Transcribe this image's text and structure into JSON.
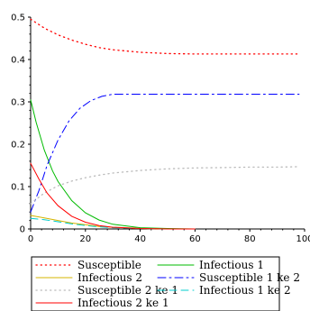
{
  "chart_data": {
    "type": "line",
    "title": "",
    "xlabel": "",
    "ylabel": "",
    "xlim": [
      0,
      100
    ],
    "ylim": [
      0,
      0.5
    ],
    "x_ticks": [
      0,
      20,
      40,
      60,
      80,
      100
    ],
    "y_ticks": [
      0,
      0.1,
      0.2,
      0.3,
      0.4,
      0.5
    ],
    "x_tick_labels": [
      "0",
      "20",
      "40",
      "60",
      "80",
      "100"
    ],
    "y_tick_labels": [
      "0",
      "0.1",
      "0.2",
      "0.3",
      "0.4",
      "0.5"
    ],
    "grid": false,
    "legend_position": "bottom",
    "series": [
      {
        "name": "Susceptible",
        "color": "#ff0000",
        "style": "dot",
        "x": [
          0,
          5,
          10,
          15,
          20,
          25,
          30,
          40,
          50,
          60,
          70,
          80,
          90,
          98
        ],
        "y": [
          0.495,
          0.474,
          0.458,
          0.446,
          0.436,
          0.428,
          0.423,
          0.417,
          0.414,
          0.413,
          0.413,
          0.413,
          0.413,
          0.413
        ]
      },
      {
        "name": "Infectious 1",
        "color": "#00bb00",
        "style": "solid",
        "x": [
          0,
          2,
          5,
          8,
          10,
          15,
          20,
          25,
          30,
          40,
          50,
          60
        ],
        "y": [
          0.305,
          0.252,
          0.186,
          0.137,
          0.112,
          0.067,
          0.038,
          0.021,
          0.011,
          0.003,
          0.001,
          0.0
        ]
      },
      {
        "name": "Infectious 2",
        "color": "#d4b400",
        "style": "solid",
        "x": [
          0,
          5,
          10,
          15,
          20,
          25,
          30,
          40,
          50,
          60
        ],
        "y": [
          0.032,
          0.026,
          0.02,
          0.014,
          0.01,
          0.006,
          0.004,
          0.001,
          0.0,
          0.0
        ]
      },
      {
        "name": "Susceptible 1 ke 2",
        "color": "#0000ff",
        "style": "dashdot",
        "x": [
          0,
          3,
          6,
          10,
          14,
          18,
          22,
          26,
          30,
          40,
          50,
          60,
          80,
          98
        ],
        "y": [
          0.04,
          0.09,
          0.15,
          0.21,
          0.255,
          0.285,
          0.303,
          0.313,
          0.318,
          0.318,
          0.318,
          0.318,
          0.318,
          0.318
        ]
      },
      {
        "name": "Susceptible 2 ke 1",
        "color": "#bbbbbb",
        "style": "dot",
        "x": [
          0,
          5,
          10,
          15,
          20,
          25,
          30,
          40,
          50,
          60,
          70,
          80,
          90,
          98
        ],
        "y": [
          0.06,
          0.085,
          0.102,
          0.113,
          0.121,
          0.127,
          0.132,
          0.138,
          0.142,
          0.144,
          0.145,
          0.146,
          0.146,
          0.147
        ]
      },
      {
        "name": "Infectious 1 ke 2",
        "color": "#00cccc",
        "style": "dash",
        "x": [
          0,
          5,
          10,
          15,
          20,
          25,
          30,
          40,
          50,
          60
        ],
        "y": [
          0.025,
          0.022,
          0.017,
          0.012,
          0.008,
          0.005,
          0.003,
          0.001,
          0.0,
          0.0
        ]
      },
      {
        "name": "Infectious 2 ke 1",
        "color": "#ff0000",
        "style": "solid",
        "x": [
          0,
          3,
          6,
          10,
          15,
          20,
          25,
          30,
          40,
          50,
          60
        ],
        "y": [
          0.155,
          0.118,
          0.085,
          0.055,
          0.03,
          0.016,
          0.008,
          0.004,
          0.001,
          0.0,
          0.0
        ]
      }
    ]
  }
}
